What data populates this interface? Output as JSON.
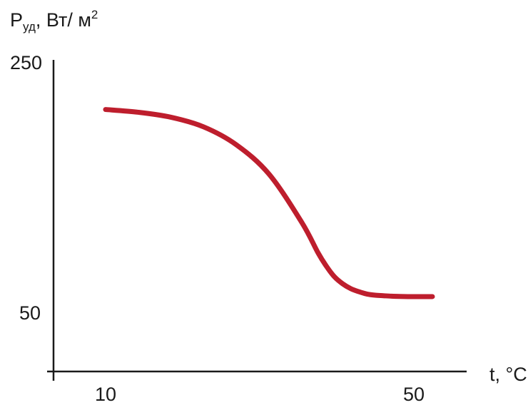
{
  "chart_data": {
    "type": "line",
    "ylabel": {
      "main": "P",
      "subscript": "уд",
      "rest": ", Вт/ м",
      "superscript": "2"
    },
    "xlabel": "t, °C",
    "y_ticks": [
      "250",
      "50"
    ],
    "x_ticks": [
      "10",
      "50"
    ],
    "y_tick_values": [
      250,
      50
    ],
    "x_tick_values": [
      10,
      50
    ],
    "xlim": [
      10,
      50
    ],
    "ylim": [
      50,
      250
    ],
    "grid": false,
    "line_color": "#be1e2d",
    "series": [
      {
        "x": [
          10,
          14,
          18,
          22,
          26,
          30,
          34,
          36,
          37,
          38,
          39,
          40,
          41,
          42,
          43,
          44,
          45,
          46,
          47,
          48,
          50
        ],
        "y": [
          211.5,
          209.3,
          205.3,
          197.6,
          183.3,
          159.9,
          121.4,
          97.0,
          86.5,
          77.9,
          72.3,
          68.4,
          65.9,
          64.0,
          63.1,
          62.7,
          62.3,
          62.1,
          62.0,
          62.0,
          62.0
        ]
      }
    ]
  }
}
